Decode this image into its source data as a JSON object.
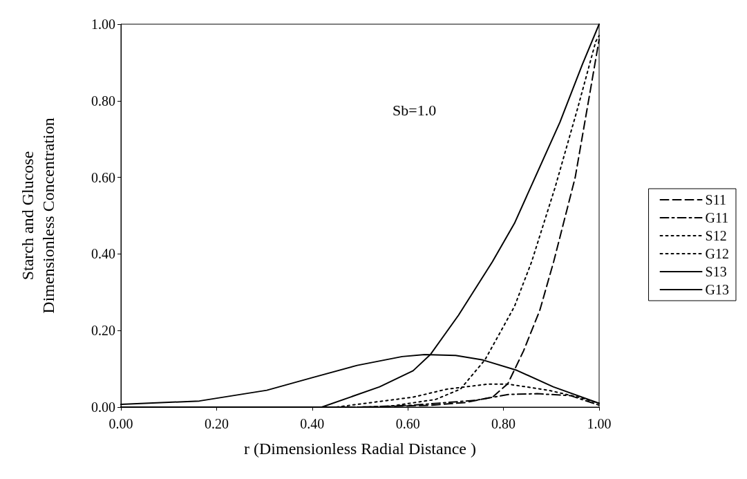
{
  "chart_data": {
    "type": "line",
    "xlabel": "r (Dimensionless Radial Distance )",
    "ylabel": "Starch and Glucose\nDimensionless Concentration",
    "annotations": [
      "Sb=1.0"
    ],
    "xlim": [
      0,
      1
    ],
    "ylim": [
      0,
      1
    ],
    "xticks": [
      {
        "value": 0,
        "label": "0.00"
      },
      {
        "value": 0.2,
        "label": "0.20"
      },
      {
        "value": 0.4,
        "label": "0.40"
      },
      {
        "value": 0.6,
        "label": "0.60"
      },
      {
        "value": 0.8,
        "label": "0.80"
      },
      {
        "value": 1,
        "label": "1.00"
      }
    ],
    "yticks": [
      {
        "value": 0,
        "label": "0.00"
      },
      {
        "value": 0.2,
        "label": "0.20"
      },
      {
        "value": 0.4,
        "label": "0.40"
      },
      {
        "value": 0.6,
        "label": "0.60"
      },
      {
        "value": 0.8,
        "label": "0.80"
      },
      {
        "value": 1,
        "label": "1.00"
      }
    ],
    "grid": false,
    "legend": "right",
    "marker": "none",
    "series": [
      {
        "name": "S11",
        "color": "#000000",
        "line_style": "dashed",
        "x": [
          0,
          0.5,
          0.65,
          0.72,
          0.777,
          0.809,
          0.842,
          0.876,
          0.905,
          0.95,
          0.983,
          1
        ],
        "values": [
          0,
          0,
          0.005,
          0.012,
          0.026,
          0.061,
          0.147,
          0.253,
          0.38,
          0.6,
          0.837,
          0.96
        ]
      },
      {
        "name": "G11",
        "color": "#000000",
        "line_style": "dashdot",
        "x": [
          0,
          0.5,
          0.61,
          0.743,
          0.81,
          0.87,
          0.94,
          1
        ],
        "values": [
          0,
          0,
          0.005,
          0.018,
          0.033,
          0.035,
          0.03,
          0.005
        ]
      },
      {
        "name": "S12",
        "color": "#000000",
        "line_style": "dotted",
        "x": [
          0,
          0.55,
          0.658,
          0.71,
          0.761,
          0.79,
          0.823,
          0.859,
          0.908,
          0.955,
          0.993,
          1
        ],
        "values": [
          0,
          0,
          0.02,
          0.047,
          0.123,
          0.188,
          0.263,
          0.38,
          0.574,
          0.78,
          0.955,
          0.97
        ]
      },
      {
        "name": "G12",
        "color": "#000000",
        "line_style": "dotted",
        "x": [
          0,
          0.45,
          0.611,
          0.682,
          0.767,
          0.81,
          0.894,
          0.96,
          1
        ],
        "values": [
          0,
          0,
          0.026,
          0.047,
          0.06,
          0.06,
          0.044,
          0.025,
          0.01
        ]
      },
      {
        "name": "S13",
        "color": "#000000",
        "line_style": "solid",
        "x": [
          0,
          0.42,
          0.541,
          0.611,
          0.647,
          0.706,
          0.777,
          0.823,
          0.918,
          0.965,
          1
        ],
        "values": [
          0,
          0,
          0.053,
          0.095,
          0.137,
          0.24,
          0.38,
          0.48,
          0.744,
          0.895,
          1
        ]
      },
      {
        "name": "G13",
        "color": "#000000",
        "line_style": "solid",
        "x": [
          0,
          0.164,
          0.305,
          0.4,
          0.494,
          0.588,
          0.635,
          0.7,
          0.757,
          0.828,
          0.904,
          1
        ],
        "values": [
          0.007,
          0.016,
          0.044,
          0.077,
          0.109,
          0.132,
          0.137,
          0.135,
          0.123,
          0.096,
          0.053,
          0.01
        ]
      }
    ]
  }
}
